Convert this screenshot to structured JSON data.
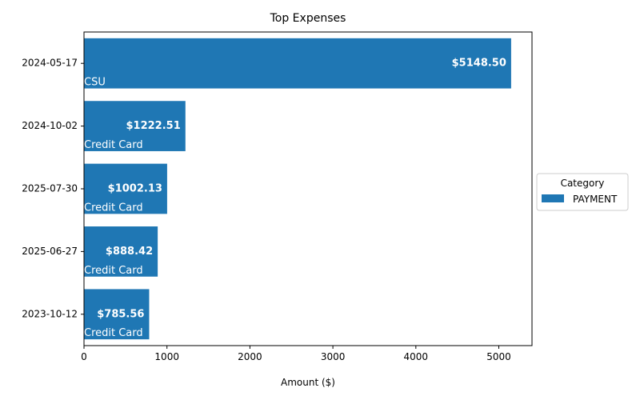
{
  "chart_data": {
    "type": "bar",
    "orientation": "horizontal",
    "title": "Top Expenses",
    "xlabel": "Amount ($)",
    "ylabel": "",
    "xlim": [
      0,
      5400
    ],
    "xticks": [
      0,
      1000,
      2000,
      3000,
      4000,
      5000
    ],
    "xtick_labels": [
      "0",
      "1000",
      "2000",
      "3000",
      "4000",
      "5000"
    ],
    "grid": false,
    "categories": [
      "2024-05-17",
      "2024-10-02",
      "2025-07-30",
      "2025-06-27",
      "2023-10-12"
    ],
    "series": [
      {
        "name": "PAYMENT",
        "color": "#1f77b4",
        "values": [
          5148.5,
          1222.51,
          1002.13,
          888.42,
          785.56
        ],
        "value_labels": [
          "$5148.50",
          "$1222.51",
          "$1002.13",
          "$888.42",
          "$785.56"
        ],
        "descriptions": [
          "CSU",
          "Credit Card",
          "Credit Card",
          "Credit Card",
          "Credit Card"
        ]
      }
    ],
    "legend": {
      "title": "Category",
      "placement": "center-right outside",
      "entries": [
        "PAYMENT"
      ]
    }
  }
}
